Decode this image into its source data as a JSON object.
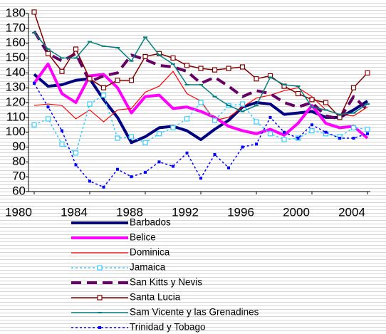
{
  "chart_data": {
    "type": "line",
    "x": [
      1980,
      1981,
      1982,
      1983,
      1984,
      1985,
      1986,
      1987,
      1988,
      1989,
      1990,
      1991,
      1992,
      1993,
      1994,
      1995,
      1996,
      1997,
      1998,
      1999,
      2000,
      2001,
      2002,
      2003,
      2004
    ],
    "xlim": [
      1980,
      2004
    ],
    "xticks": [
      1980,
      1984,
      1988,
      1992,
      1996,
      2000,
      2004
    ],
    "ylim": [
      60,
      180
    ],
    "yticks": [
      60,
      70,
      80,
      90,
      100,
      110,
      120,
      130,
      140,
      150,
      160,
      170,
      180
    ],
    "grid": false,
    "legend": "bottom",
    "series": [
      {
        "name": "Barbados",
        "color": "#000080",
        "width": 4,
        "dash": "none",
        "marker": "none",
        "values": [
          139,
          131,
          132,
          135,
          136,
          122,
          110,
          93,
          97,
          103,
          104,
          101,
          95,
          102,
          108,
          117,
          120,
          119,
          112,
          113,
          114,
          110,
          110,
          115,
          121
        ]
      },
      {
        "name": "Belice",
        "color": "#ff00ff",
        "width": 4,
        "dash": "none",
        "marker": "none",
        "values": [
          133,
          146,
          126,
          120,
          138,
          139,
          130,
          113,
          124,
          125,
          116,
          117,
          114,
          110,
          104,
          101,
          99,
          102,
          98,
          106,
          118,
          106,
          103,
          104,
          96
        ]
      },
      {
        "name": "Dominica",
        "color": "#ff0000",
        "width": 1.2,
        "dash": "none",
        "marker": "none",
        "values": [
          118,
          119,
          118,
          109,
          115,
          107,
          115,
          116,
          127,
          131,
          141,
          126,
          121,
          108,
          110,
          117,
          123,
          125,
          128,
          130,
          124,
          115,
          112,
          111,
          117
        ]
      },
      {
        "name": "Jamaica",
        "color": "#33ccff",
        "width": 1.5,
        "dash": "3 3",
        "marker": "open-square",
        "values": [
          105,
          109,
          92,
          86,
          119,
          125,
          96,
          97,
          93,
          99,
          103,
          109,
          120,
          108,
          118,
          119,
          107,
          99,
          95,
          96,
          101,
          99,
          97,
          103,
          102
        ]
      },
      {
        "name": "San Kitts y Nevis",
        "color": "#660066",
        "width": 4,
        "dash": "14 8",
        "marker": "none",
        "values": [
          168,
          153,
          148,
          153,
          134,
          138,
          140,
          152,
          149,
          145,
          144,
          141,
          133,
          137,
          131,
          124,
          128,
          126,
          120,
          117,
          120,
          111,
          109,
          124,
          115
        ]
      },
      {
        "name": "Santa Lucia",
        "color": "#800000",
        "width": 1.5,
        "dash": "none",
        "marker": "open-square",
        "values": [
          181,
          153,
          141,
          156,
          136,
          130,
          135,
          135,
          151,
          153,
          150,
          145,
          143,
          142,
          143,
          144,
          136,
          138,
          131,
          126,
          122,
          120,
          110,
          130,
          140
        ]
      },
      {
        "name": "Sam Vicente y las Grenadines",
        "color": "#008080",
        "width": 1.5,
        "dash": "none",
        "marker": "dash",
        "values": [
          167,
          156,
          150,
          150,
          161,
          158,
          157,
          148,
          164,
          152,
          146,
          132,
          132,
          124,
          118,
          114,
          118,
          137,
          132,
          131,
          117,
          115,
          112,
          113,
          119
        ]
      },
      {
        "name": "Trinidad y Tobago",
        "color": "#0000ff",
        "width": 1.5,
        "dash": "3 3",
        "marker": "square",
        "values": [
          133,
          117,
          101,
          78,
          67,
          63,
          75,
          70,
          73,
          80,
          77,
          86,
          69,
          85,
          76,
          90,
          92,
          110,
          100,
          96,
          105,
          100,
          96,
          96,
          99
        ]
      }
    ]
  }
}
